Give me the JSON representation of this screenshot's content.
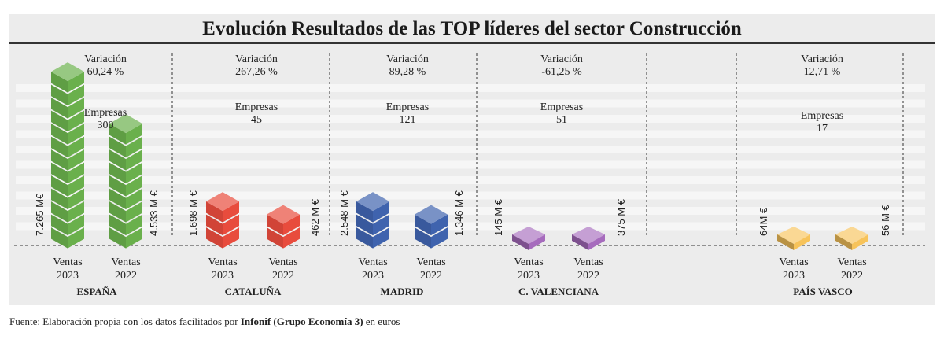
{
  "chart_data": {
    "type": "bar",
    "title": "Evolución Resultados de las TOP líderes del sector Construcción",
    "unit": "M €",
    "categories": [
      "ESPAÑA",
      "CATALUÑA",
      "MADRID",
      "C. VALENCIANA",
      "PAÍS VASCO"
    ],
    "series": [
      {
        "name": "Ventas 2023",
        "values": [
          7265,
          1698,
          2548,
          145,
          64
        ],
        "labels": [
          "7.265 M€",
          "1.698 M €",
          "2.548 M €",
          "145 M €",
          "64M €"
        ]
      },
      {
        "name": "Ventas 2022",
        "values": [
          4533,
          462,
          1346,
          375,
          56
        ],
        "labels": [
          "4.533 M €",
          "462 M €",
          "1.346 M €",
          "375 M €",
          "56 M €"
        ]
      }
    ],
    "variacion_label": "Variación",
    "variacion": [
      "60,24 %",
      "267,26 %",
      "89,28 %",
      "-61,25 %",
      "12,71 %"
    ],
    "empresas_label": "Empresas",
    "empresas": [
      "300",
      "45",
      "121",
      "51",
      "17"
    ],
    "bar_label_word": "Ventas",
    "bar_years": [
      "2023",
      "2022"
    ],
    "colors": [
      "#6ab04c",
      "#e84c3d",
      "#3f63ae",
      "#a66bbd",
      "#f7c35a"
    ],
    "grid": true
  },
  "footer": {
    "prefix": "Fuente: Elaboración propia con los datos facilitados por ",
    "bold": "Infonif (Grupo Economía 3)",
    "suffix": "  en euros"
  }
}
